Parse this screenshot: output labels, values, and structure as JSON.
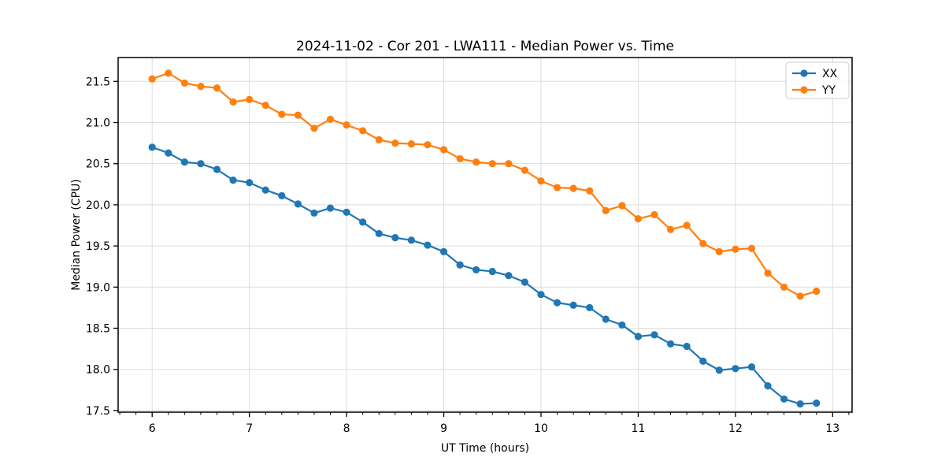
{
  "figure": {
    "background": "#ffffff",
    "frame_color": "#000000",
    "grid_color": "#dddddd"
  },
  "chart_data": {
    "type": "line",
    "title": "2024-11-02 - Cor 201 - LWA111 - Median Power vs. Time",
    "xlabel": "UT Time (hours)",
    "ylabel": "Median Power (CPU)",
    "grid": true,
    "legend_position": "upper right",
    "xlim": [
      5.65,
      13.2
    ],
    "ylim": [
      17.48,
      21.79
    ],
    "x_ticks": [
      6,
      7,
      8,
      9,
      10,
      11,
      12,
      13
    ],
    "x_tick_labels": [
      "6",
      "7",
      "8",
      "9",
      "10",
      "11",
      "12",
      "13"
    ],
    "x_minor_tick_step": 0.1666667,
    "y_ticks": [
      17.5,
      18.0,
      18.5,
      19.0,
      19.5,
      20.0,
      20.5,
      21.0,
      21.5
    ],
    "y_tick_labels": [
      "17.5",
      "18.0",
      "18.5",
      "19.0",
      "19.5",
      "20.0",
      "20.5",
      "21.0",
      "21.5"
    ],
    "x": [
      6.0,
      6.1667,
      6.3333,
      6.5,
      6.6667,
      6.8333,
      7.0,
      7.1667,
      7.3333,
      7.5,
      7.6667,
      7.8333,
      8.0,
      8.1667,
      8.3333,
      8.5,
      8.6667,
      8.8333,
      9.0,
      9.1667,
      9.3333,
      9.5,
      9.6667,
      9.8333,
      10.0,
      10.1667,
      10.3333,
      10.5,
      10.6667,
      10.8333,
      11.0,
      11.1667,
      11.3333,
      11.5,
      11.6667,
      11.8333,
      12.0,
      12.1667,
      12.3333,
      12.5,
      12.6667,
      12.8333
    ],
    "series": [
      {
        "name": "XX",
        "color": "#1f77b4",
        "values": [
          20.7,
          20.63,
          20.52,
          20.5,
          20.43,
          20.3,
          20.27,
          20.18,
          20.11,
          20.01,
          19.9,
          19.96,
          19.91,
          19.79,
          19.65,
          19.6,
          19.57,
          19.51,
          19.43,
          19.27,
          19.21,
          19.19,
          19.14,
          19.06,
          18.91,
          18.81,
          18.78,
          18.75,
          18.61,
          18.54,
          18.4,
          18.42,
          18.31,
          18.28,
          18.1,
          17.99,
          18.01,
          18.03,
          17.8,
          17.64,
          17.58,
          17.59
        ]
      },
      {
        "name": "YY",
        "color": "#ff7f0e",
        "values": [
          21.53,
          21.6,
          21.48,
          21.44,
          21.42,
          21.25,
          21.28,
          21.21,
          21.1,
          21.09,
          20.93,
          21.04,
          20.97,
          20.9,
          20.79,
          20.75,
          20.74,
          20.73,
          20.67,
          20.56,
          20.52,
          20.5,
          20.5,
          20.42,
          20.29,
          20.21,
          20.2,
          20.17,
          19.93,
          19.99,
          19.83,
          19.88,
          19.7,
          19.75,
          19.53,
          19.43,
          19.46,
          19.47,
          19.17,
          19.0,
          18.89,
          18.95
        ]
      }
    ]
  }
}
